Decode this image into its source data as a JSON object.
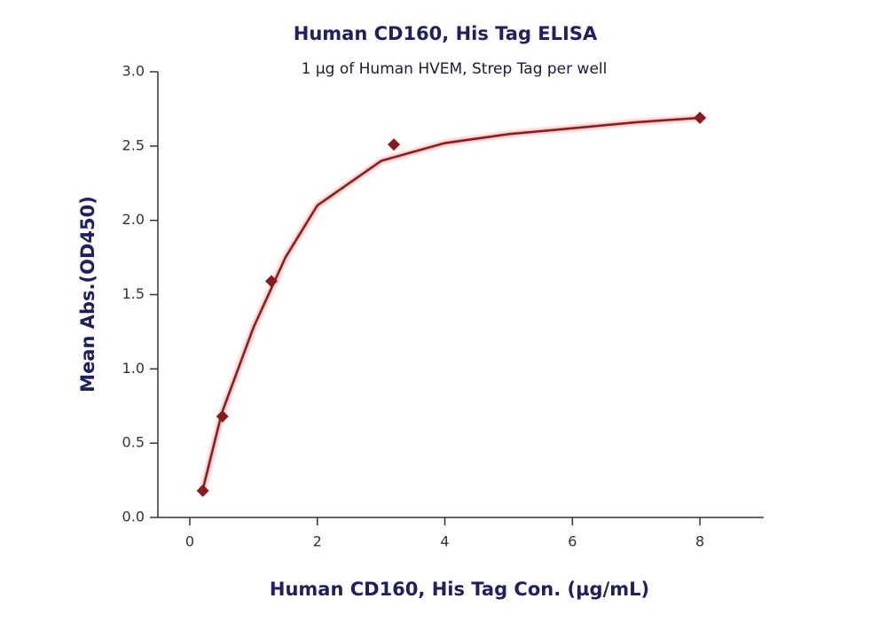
{
  "chart_data": {
    "type": "scatter",
    "title": "Human CD160, His Tag ELISA",
    "subtitle": "1 µg of Human HVEM, Strep Tag per well",
    "x_label": "Human CD160, His Tag Con. (µg/mL)",
    "y_label": "Mean Abs.(OD450)",
    "xlim": [
      -0.5,
      9
    ],
    "ylim": [
      0,
      3
    ],
    "xticks": [
      0,
      2,
      4,
      6,
      8
    ],
    "yticks": [
      {
        "value": 0,
        "label": "0.0"
      },
      {
        "value": 0.5,
        "label": "0.5"
      },
      {
        "value": 1,
        "label": "1.0"
      },
      {
        "value": 1.5,
        "label": "1.5"
      },
      {
        "value": 2,
        "label": "2.0"
      },
      {
        "value": 2.5,
        "label": "2.5"
      },
      {
        "value": 3,
        "label": "3.0"
      }
    ],
    "series": [
      {
        "x": [
          0.2048,
          0.512,
          1.28,
          3.2,
          8
        ],
        "values": [
          0.18,
          0.68,
          1.59,
          2.51,
          2.69
        ],
        "color": "#8b1a1a"
      }
    ],
    "fit": {
      "x": [
        0.2,
        0.5,
        1,
        1.5,
        2,
        3,
        4,
        5,
        6,
        7,
        8
      ],
      "values": [
        0.18,
        0.7,
        1.28,
        1.75,
        2.1,
        2.4,
        2.52,
        2.58,
        2.62,
        2.66,
        2.69
      ],
      "color": "#8b1a1a"
    }
  }
}
